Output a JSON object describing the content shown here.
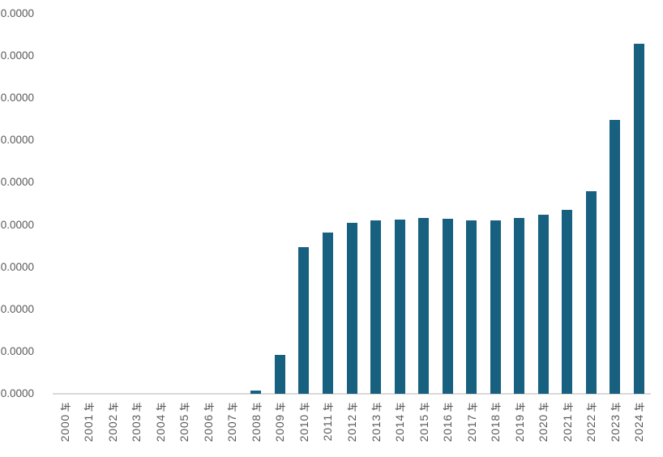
{
  "chart_data": {
    "type": "bar",
    "title": "",
    "xlabel": "",
    "ylabel": "",
    "categories": [
      "2000年",
      "2001年",
      "2002年",
      "2003年",
      "2004年",
      "2005年",
      "2006年",
      "2007年",
      "2008年",
      "2009年",
      "2010年",
      "2011年",
      "2012年",
      "2013年",
      "2014年",
      "2015年",
      "2016年",
      "2017年",
      "2018年",
      "2019年",
      "2020年",
      "2021年",
      "2022年",
      "2023年",
      "2024年"
    ],
    "values": [
      0,
      0,
      0,
      0,
      0,
      0,
      0,
      0,
      0.08,
      0.92,
      3.47,
      3.81,
      4.04,
      4.1,
      4.12,
      4.16,
      4.14,
      4.1,
      4.11,
      4.17,
      4.24,
      4.35,
      4.79,
      6.49,
      8.29
    ],
    "value_unit_note": "values estimated in y-axis gridline intervals; y tick labels are clipped at the left image edge so only the '0.0000' (4-decimal) ending of each tick number is visible",
    "ylim": [
      0,
      9
    ],
    "y_ticks": [
      "0.0000",
      "0.0000",
      "0.0000",
      "0.0000",
      "0.0000",
      "0.0000",
      "0.0000",
      "0.0000",
      "0.0000",
      "0.0000"
    ],
    "y_tick_labels_clipped_left": true,
    "grid": false,
    "legend": false,
    "colors": {
      "bar": "#17607F",
      "axis_line": "#D9D9D9",
      "tick_text": "#595959",
      "background": "#FFFFFF"
    }
  }
}
